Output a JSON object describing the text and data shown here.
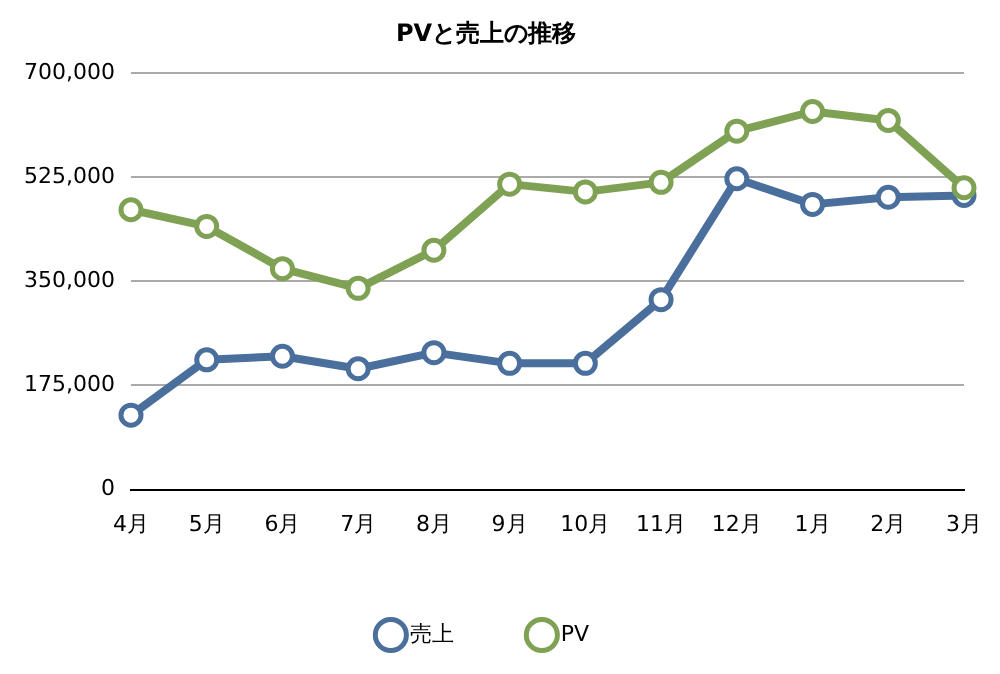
{
  "chart_data": {
    "type": "line",
    "title": "PVと売上の推移",
    "categories": [
      "4月",
      "5月",
      "6月",
      "7月",
      "8月",
      "9月",
      "10月",
      "11月",
      "12月",
      "1月",
      "2月",
      "3月"
    ],
    "series": [
      {
        "name": "売上",
        "color": "#4a6f9c",
        "values": [
          125000,
          218000,
          224000,
          203000,
          230000,
          212000,
          212000,
          319000,
          522000,
          479000,
          491000,
          494000
        ]
      },
      {
        "name": "PV",
        "color": "#7fa154",
        "values": [
          470000,
          442000,
          371000,
          338000,
          402000,
          513000,
          500000,
          516000,
          602000,
          635000,
          620000,
          507000
        ]
      }
    ],
    "ylim": [
      0,
      700000
    ],
    "yticks": [
      {
        "value": 0,
        "label": "0"
      },
      {
        "value": 175000,
        "label": "175,000"
      },
      {
        "value": 350000,
        "label": "350,000"
      },
      {
        "value": 525000,
        "label": "525,000"
      },
      {
        "value": 700000,
        "label": "700,000"
      }
    ],
    "grid": "y",
    "legend": "bottom",
    "marker": "circle",
    "line_style": "solid"
  }
}
